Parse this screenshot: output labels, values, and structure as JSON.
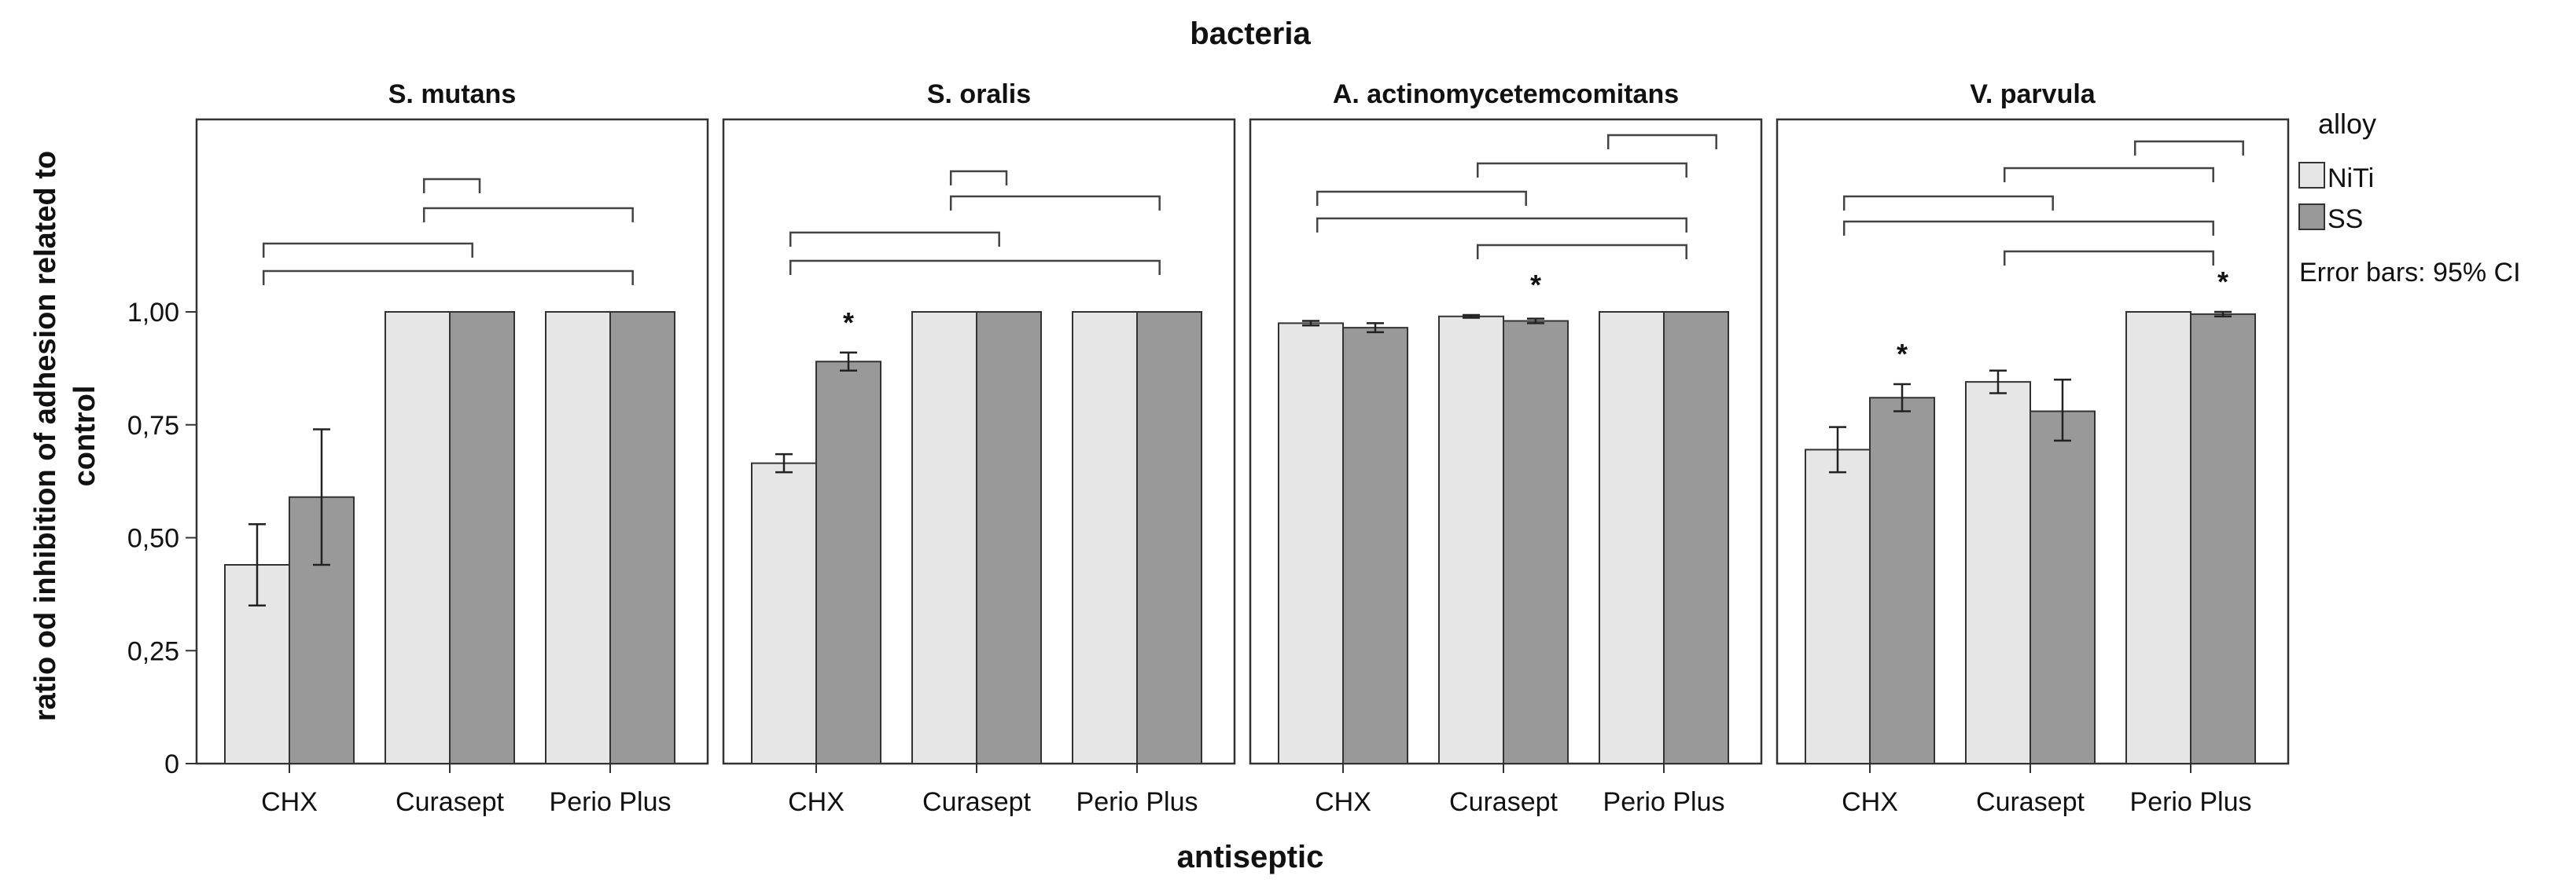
{
  "chart_data": {
    "type": "bar",
    "title": "bacteria",
    "xlabel": "antiseptic",
    "ylabel": "ratio od inhibition of adhesion related to control",
    "ylim": [
      0,
      1.25
    ],
    "y_ticks": [
      "0",
      "0,25",
      "0,50",
      "0,75",
      "1,00"
    ],
    "y_tick_values": [
      0,
      0.25,
      0.5,
      0.75,
      1.0
    ],
    "categories": [
      "CHX",
      "Curasept",
      "Perio Plus"
    ],
    "legend": {
      "title": "alloy",
      "entries": [
        {
          "name": "NiTi",
          "color": "#e6e6e6"
        },
        {
          "name": "SS",
          "color": "#999999"
        }
      ],
      "note": "Error bars: 95% CI",
      "position": "right"
    },
    "annotation_symbol": "*",
    "grid": false,
    "panels": [
      {
        "name": "S. mutans",
        "series": [
          {
            "name": "NiTi",
            "values": [
              0.44,
              1.0,
              1.0
            ],
            "ci_low": [
              0.35,
              1.0,
              1.0
            ],
            "ci_high": [
              0.53,
              1.0,
              1.0
            ]
          },
          {
            "name": "SS",
            "values": [
              0.59,
              1.0,
              1.0
            ],
            "ci_low": [
              0.44,
              1.0,
              1.0
            ],
            "ci_high": [
              0.74,
              1.0,
              1.0
            ]
          }
        ],
        "stars": [],
        "brackets": [
          {
            "from": "Curasept",
            "to": "Curasept/Perio Plus"
          },
          {
            "from": "Curasept",
            "to": "Perio Plus"
          },
          {
            "from": "CHX",
            "to": "Curasept"
          },
          {
            "from": "CHX",
            "to": "Perio Plus"
          }
        ]
      },
      {
        "name": "S. oralis",
        "series": [
          {
            "name": "NiTi",
            "values": [
              0.665,
              1.0,
              1.0
            ],
            "ci_low": [
              0.645,
              1.0,
              1.0
            ],
            "ci_high": [
              0.685,
              1.0,
              1.0
            ]
          },
          {
            "name": "SS",
            "values": [
              0.89,
              1.0,
              1.0
            ],
            "ci_low": [
              0.87,
              1.0,
              1.0
            ],
            "ci_high": [
              0.91,
              1.0,
              1.0
            ]
          }
        ],
        "stars": [
          "CHX"
        ],
        "brackets": [
          {
            "from": "Curasept",
            "to": "Curasept/Perio Plus"
          },
          {
            "from": "Curasept",
            "to": "Perio Plus"
          },
          {
            "from": "CHX",
            "to": "Curasept"
          },
          {
            "from": "CHX",
            "to": "Perio Plus"
          }
        ]
      },
      {
        "name": "A. actinomycetemcomitans",
        "series": [
          {
            "name": "NiTi",
            "values": [
              0.975,
              0.99,
              1.0
            ],
            "ci_low": [
              0.97,
              0.987,
              1.0
            ],
            "ci_high": [
              0.98,
              0.993,
              1.0
            ]
          },
          {
            "name": "SS",
            "values": [
              0.965,
              0.98,
              1.0
            ],
            "ci_low": [
              0.955,
              0.975,
              1.0
            ],
            "ci_high": [
              0.975,
              0.985,
              1.0
            ]
          }
        ],
        "stars": [
          "Curasept"
        ],
        "brackets": [
          {
            "from": "Perio Plus",
            "to": "Perio Plus"
          },
          {
            "from": "Curasept",
            "to": "Perio Plus"
          },
          {
            "from": "CHX",
            "to": "Curasept"
          },
          {
            "from": "CHX",
            "to": "Perio Plus"
          },
          {
            "from": "Curasept",
            "to": "Perio Plus"
          }
        ]
      },
      {
        "name": "V. parvula",
        "series": [
          {
            "name": "NiTi",
            "values": [
              0.695,
              0.845,
              1.0
            ],
            "ci_low": [
              0.645,
              0.82,
              0.997
            ],
            "ci_high": [
              0.745,
              0.87,
              1.0
            ]
          },
          {
            "name": "SS",
            "values": [
              0.81,
              0.78,
              0.995
            ],
            "ci_low": [
              0.78,
              0.715,
              0.99
            ],
            "ci_high": [
              0.84,
              0.85,
              1.0
            ]
          }
        ],
        "stars": [
          "CHX",
          "Perio Plus"
        ],
        "brackets": [
          {
            "from": "Perio Plus",
            "to": "Perio Plus"
          },
          {
            "from": "Curasept",
            "to": "Perio Plus"
          },
          {
            "from": "CHX",
            "to": "Curasept"
          },
          {
            "from": "CHX",
            "to": "Perio Plus"
          },
          {
            "from": "Curasept",
            "to": "Perio Plus"
          }
        ]
      }
    ]
  }
}
